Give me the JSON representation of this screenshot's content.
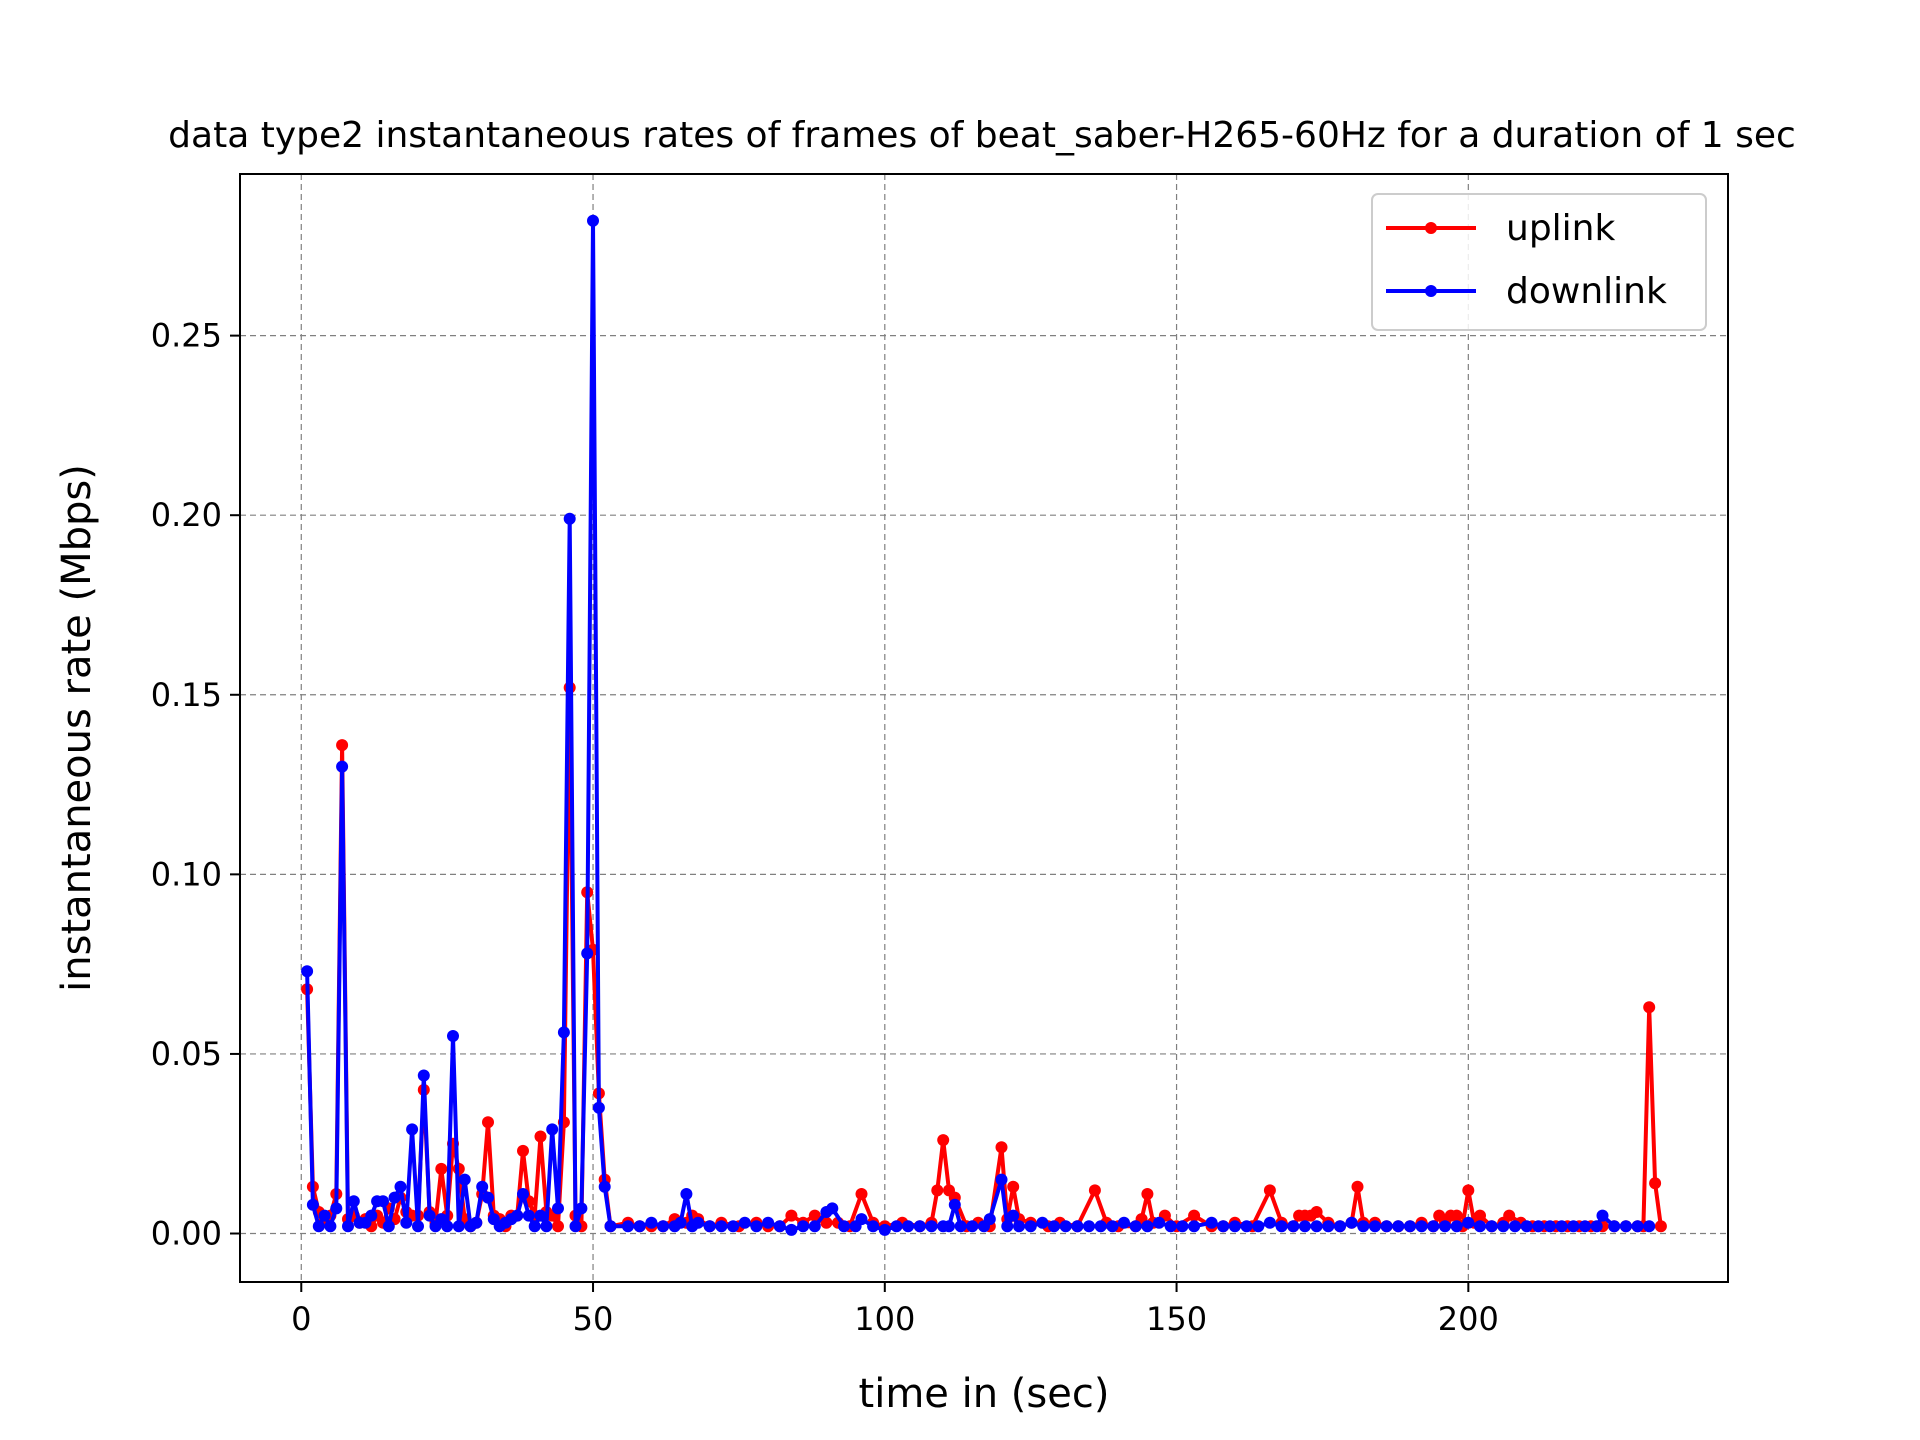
{
  "chart_data": {
    "type": "line",
    "title": "data type2 instantaneous rates of frames of beat_saber-H265-60Hz for a duration of 1 sec",
    "xlabel": "time in (sec)",
    "ylabel": "instantaneous rate (Mbps)",
    "xlim": [
      -10.5,
      244.5
    ],
    "ylim": [
      -0.0135,
      0.295
    ],
    "xticks": [
      0,
      50,
      100,
      150,
      200
    ],
    "xtick_labels": [
      "0",
      "50",
      "100",
      "150",
      "200"
    ],
    "yticks": [
      0.0,
      0.05,
      0.1,
      0.15,
      0.2,
      0.25
    ],
    "ytick_labels": [
      "0.00",
      "0.05",
      "0.10",
      "0.15",
      "0.20",
      "0.25"
    ],
    "grid": true,
    "legend_position": "upper right",
    "series": [
      {
        "name": "uplink",
        "color": "#ff0000",
        "x": [
          1,
          2,
          3,
          4,
          5,
          6,
          7,
          8,
          9,
          10,
          11,
          12,
          13,
          14,
          15,
          16,
          17,
          18,
          19,
          20,
          21,
          22,
          23,
          24,
          25,
          26,
          27,
          28,
          29,
          30,
          31,
          32,
          33,
          34,
          35,
          36,
          37,
          38,
          39,
          40,
          41,
          42,
          43,
          44,
          45,
          46,
          47,
          48,
          49,
          50,
          51,
          52,
          53,
          56,
          58,
          60,
          62,
          64,
          66,
          67,
          68,
          70,
          72,
          75,
          78,
          80,
          82,
          84,
          86,
          88,
          90,
          92,
          94,
          96,
          98,
          100,
          103,
          106,
          108,
          109,
          110,
          111,
          112,
          114,
          116,
          118,
          120,
          121,
          122,
          123,
          125,
          128,
          130,
          133,
          136,
          138,
          140,
          143,
          144,
          145,
          146,
          148,
          150,
          153,
          156,
          158,
          160,
          163,
          166,
          168,
          170,
          171,
          172,
          173,
          174,
          176,
          178,
          180,
          181,
          182,
          184,
          186,
          188,
          190,
          192,
          194,
          195,
          196,
          197,
          198,
          199,
          200,
          201,
          202,
          204,
          206,
          207,
          209,
          211,
          213,
          215,
          217,
          219,
          221,
          223,
          225,
          227,
          229,
          230,
          231,
          232,
          233
        ],
        "y": [
          0.068,
          0.013,
          0.006,
          0.004,
          0.005,
          0.011,
          0.136,
          0.004,
          0.005,
          0.003,
          0.004,
          0.002,
          0.005,
          0.003,
          0.007,
          0.004,
          0.01,
          0.006,
          0.005,
          0.005,
          0.04,
          0.006,
          0.003,
          0.018,
          0.005,
          0.025,
          0.018,
          0.004,
          0.002,
          0.003,
          0.011,
          0.031,
          0.005,
          0.004,
          0.002,
          0.005,
          0.005,
          0.023,
          0.009,
          0.005,
          0.027,
          0.006,
          0.005,
          0.002,
          0.031,
          0.152,
          0.005,
          0.002,
          0.095,
          0.079,
          0.039,
          0.015,
          0.002,
          0.003,
          0.002,
          0.002,
          0.002,
          0.004,
          0.003,
          0.005,
          0.004,
          0.002,
          0.003,
          0.002,
          0.003,
          0.002,
          0.002,
          0.005,
          0.003,
          0.005,
          0.003,
          0.003,
          0.002,
          0.011,
          0.003,
          0.002,
          0.003,
          0.002,
          0.003,
          0.012,
          0.026,
          0.012,
          0.01,
          0.002,
          0.003,
          0.002,
          0.024,
          0.004,
          0.013,
          0.004,
          0.003,
          0.002,
          0.003,
          0.002,
          0.012,
          0.003,
          0.002,
          0.002,
          0.004,
          0.011,
          0.003,
          0.005,
          0.002,
          0.005,
          0.002,
          0.002,
          0.003,
          0.002,
          0.012,
          0.003,
          0.002,
          0.005,
          0.005,
          0.005,
          0.006,
          0.003,
          0.002,
          0.003,
          0.013,
          0.003,
          0.003,
          0.002,
          0.002,
          0.002,
          0.003,
          0.002,
          0.005,
          0.003,
          0.005,
          0.005,
          0.002,
          0.012,
          0.003,
          0.005,
          0.002,
          0.003,
          0.005,
          0.003,
          0.002,
          0.002,
          0.002,
          0.002,
          0.002,
          0.002,
          0.002,
          0.002,
          0.002,
          0.002,
          0.002,
          0.063,
          0.014,
          0.002
        ]
      },
      {
        "name": "downlink",
        "color": "#0000ff",
        "x": [
          1,
          2,
          3,
          4,
          5,
          6,
          7,
          8,
          9,
          10,
          11,
          12,
          13,
          14,
          15,
          16,
          17,
          18,
          19,
          20,
          21,
          22,
          23,
          24,
          25,
          26,
          27,
          28,
          29,
          30,
          31,
          32,
          33,
          34,
          35,
          36,
          37,
          38,
          39,
          40,
          41,
          42,
          43,
          44,
          45,
          46,
          47,
          48,
          49,
          50,
          51,
          52,
          53,
          56,
          58,
          60,
          62,
          64,
          65,
          66,
          67,
          68,
          70,
          72,
          74,
          76,
          78,
          80,
          82,
          84,
          86,
          88,
          90,
          91,
          93,
          95,
          96,
          98,
          100,
          102,
          104,
          106,
          108,
          110,
          111,
          112,
          113,
          115,
          117,
          118,
          120,
          121,
          122,
          123,
          125,
          127,
          129,
          131,
          133,
          135,
          137,
          139,
          141,
          143,
          145,
          147,
          149,
          151,
          153,
          156,
          158,
          160,
          162,
          164,
          166,
          168,
          170,
          172,
          174,
          176,
          178,
          180,
          182,
          184,
          186,
          188,
          190,
          192,
          194,
          196,
          198,
          200,
          202,
          204,
          206,
          208,
          210,
          212,
          214,
          216,
          218,
          220,
          222,
          223,
          225,
          227,
          229,
          231
        ],
        "y": [
          0.073,
          0.008,
          0.002,
          0.005,
          0.002,
          0.007,
          0.13,
          0.002,
          0.009,
          0.003,
          0.003,
          0.005,
          0.009,
          0.009,
          0.002,
          0.01,
          0.013,
          0.003,
          0.029,
          0.002,
          0.044,
          0.005,
          0.002,
          0.004,
          0.002,
          0.055,
          0.002,
          0.015,
          0.002,
          0.003,
          0.013,
          0.01,
          0.004,
          0.002,
          0.003,
          0.004,
          0.005,
          0.011,
          0.005,
          0.002,
          0.005,
          0.002,
          0.029,
          0.007,
          0.056,
          0.199,
          0.002,
          0.007,
          0.078,
          0.282,
          0.035,
          0.013,
          0.002,
          0.002,
          0.002,
          0.003,
          0.002,
          0.002,
          0.003,
          0.011,
          0.002,
          0.003,
          0.002,
          0.002,
          0.002,
          0.003,
          0.002,
          0.003,
          0.002,
          0.001,
          0.002,
          0.002,
          0.006,
          0.007,
          0.002,
          0.002,
          0.004,
          0.002,
          0.001,
          0.002,
          0.002,
          0.002,
          0.002,
          0.002,
          0.002,
          0.008,
          0.002,
          0.002,
          0.002,
          0.004,
          0.015,
          0.002,
          0.005,
          0.002,
          0.002,
          0.003,
          0.002,
          0.002,
          0.002,
          0.002,
          0.002,
          0.002,
          0.003,
          0.002,
          0.002,
          0.003,
          0.002,
          0.002,
          0.002,
          0.003,
          0.002,
          0.002,
          0.002,
          0.002,
          0.003,
          0.002,
          0.002,
          0.002,
          0.002,
          0.002,
          0.002,
          0.003,
          0.002,
          0.002,
          0.002,
          0.002,
          0.002,
          0.002,
          0.002,
          0.002,
          0.002,
          0.003,
          0.002,
          0.002,
          0.002,
          0.002,
          0.002,
          0.002,
          0.002,
          0.002,
          0.002,
          0.002,
          0.002,
          0.005,
          0.002,
          0.002,
          0.002,
          0.002
        ]
      }
    ]
  }
}
